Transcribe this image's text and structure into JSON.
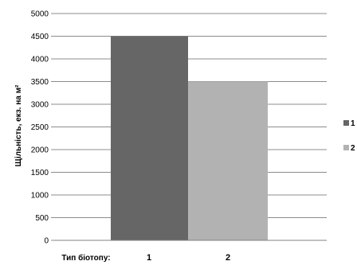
{
  "chart_data": {
    "type": "bar",
    "categories": [
      "1",
      "2"
    ],
    "series": [
      {
        "name": "1",
        "values": [
          4500,
          3500
        ],
        "color": "#666666"
      },
      {
        "name": "2",
        "values": [
          null,
          null
        ],
        "color": "#b2b2b2"
      }
    ],
    "values": [
      4500,
      3500
    ],
    "bar_colors": [
      "#666666",
      "#b2b2b2"
    ],
    "ylim": [
      0,
      5000
    ],
    "yticks": [
      0,
      500,
      1000,
      1500,
      2000,
      2500,
      3000,
      3500,
      4000,
      4500,
      5000
    ],
    "ylabel": "Щільність, екз. на м²",
    "xlabel": "Тип біотопу:",
    "title": "",
    "grid": true,
    "legend": [
      "1",
      "2"
    ],
    "legend_position": "right"
  }
}
